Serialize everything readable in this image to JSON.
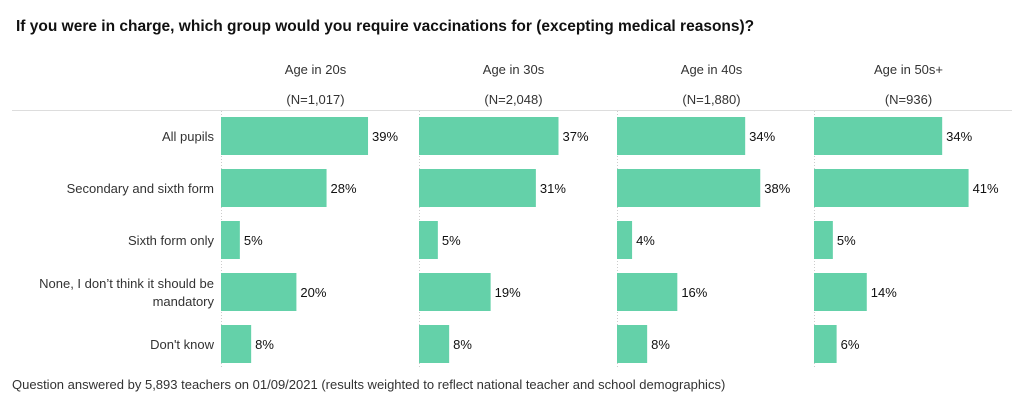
{
  "chart_data": {
    "type": "bar",
    "title": "If you were in charge, which group would you require vaccinations for (excepting medical reasons)?",
    "footer": "Question answered by 5,893 teachers on 01/09/2021 (results weighted to reflect national teacher and school demographics)",
    "categories": [
      "All pupils",
      "Secondary and sixth form",
      "Sixth form only",
      "None, I don't think it should be mandatory",
      "Don't know"
    ],
    "category_lines": [
      [
        "All pupils"
      ],
      [
        "Secondary and sixth form"
      ],
      [
        "Sixth form only"
      ],
      [
        "None, I don’t think it should be",
        "mandatory"
      ],
      [
        "Don't know"
      ]
    ],
    "panels": [
      {
        "name": "Age in 20s",
        "n": "(N=1,017)",
        "values": [
          39,
          28,
          5,
          20,
          8
        ]
      },
      {
        "name": "Age in 30s",
        "n": "(N=2,048)",
        "values": [
          37,
          31,
          5,
          19,
          8
        ]
      },
      {
        "name": "Age in 40s",
        "n": "(N=1,880)",
        "values": [
          34,
          38,
          4,
          16,
          8
        ]
      },
      {
        "name": "Age in 50s+",
        "n": "(N=936)",
        "values": [
          34,
          41,
          5,
          14,
          6
        ]
      }
    ],
    "value_suffix": "%",
    "xlim": [
      0,
      52
    ],
    "bar_color": "#64d1a9"
  }
}
